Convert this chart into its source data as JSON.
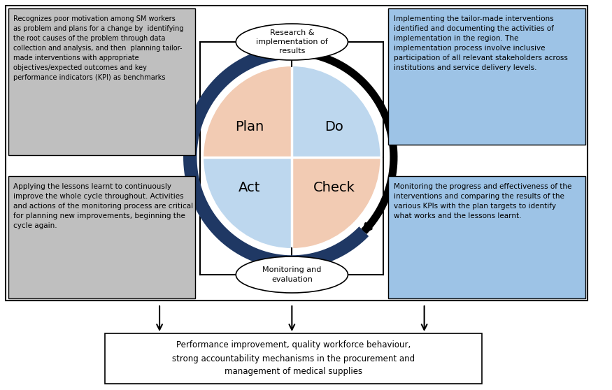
{
  "background_color": "#ffffff",
  "border_color": "#000000",
  "plan_color": "#f2cbb3",
  "do_color": "#bdd7ee",
  "check_color": "#f2cbb3",
  "act_color": "#bdd7ee",
  "circle_navy_color": "#1f3864",
  "circle_black_color": "#000000",
  "gray_box_color": "#bfbfbf",
  "blue_box_color": "#9dc3e6",
  "ellipse_fill": "#ffffff",
  "ellipse_border": "#000000",
  "bottom_box_fill": "#ffffff",
  "bottom_box_border": "#000000",
  "text_color": "#000000",
  "plan_label": "Plan",
  "do_label": "Do",
  "check_label": "Check",
  "act_label": "Act",
  "top_ellipse_text": "Research &\nimplementation of\nresults",
  "bottom_ellipse_text": "Monitoring and\nevaluation",
  "gray_box_top_text": "Recognizes poor motivation among SM workers\nas problem and plans for a change by  identifying\nthe root causes of the problem through data\ncollection and analysis, and then  planning tailor-\nmade interventions with appropriate\nobjectives/expected outcomes and key\nperformance indicators (KPI) as benchmarks",
  "blue_box_top_text": "Implementing the tailor-made interventions\nidentified and documenting the activities of\nimplementation in the region. The\nimplementation process involve inclusive\nparticipation of all relevant stakeholders across\ninstitutions and service delivery levels.",
  "gray_box_bottom_text": "Applying the lessons learnt to continuously\nimprove the whole cycle throughout. Activities\nand actions of the monitoring process are critical\nfor planning new improvements, beginning the\ncycle again.",
  "blue_box_bottom_text": "Monitoring the progress and effectiveness of the\ninterventions and comparing the results of the\nvarious KPIs with the plan targets to identify\nwhat works and the lessons learnt.",
  "bottom_box_text": "Performance improvement, quality workforce behaviour,\nstrong accountability mechanisms in the procurement and\nmanagement of medical supplies"
}
